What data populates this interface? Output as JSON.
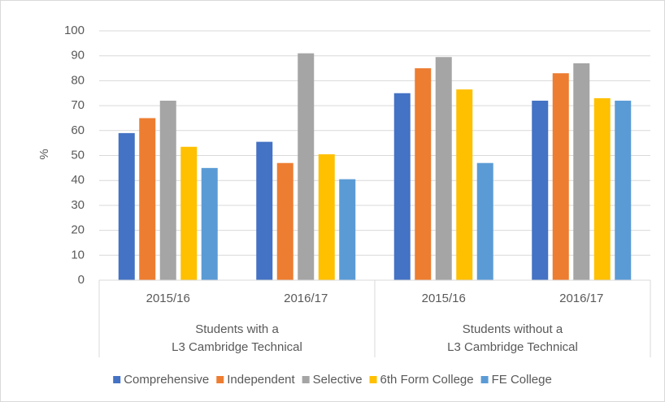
{
  "chart_data": {
    "type": "bar",
    "ylabel": "%",
    "categories": [
      "2015/16",
      "2016/17",
      "2015/16",
      "2016/17"
    ],
    "groups": [
      [
        "Students with a",
        "L3 Cambridge Technical"
      ],
      [
        "Students without a",
        "L3 Cambridge Technical"
      ]
    ],
    "series": [
      {
        "name": "Comprehensive",
        "color": "#4472c4",
        "values": [
          59,
          55.5,
          75,
          72
        ]
      },
      {
        "name": "Independent",
        "color": "#ed7d31",
        "values": [
          65,
          47,
          85,
          83
        ]
      },
      {
        "name": "Selective",
        "color": "#a5a5a5",
        "values": [
          72,
          91,
          89.5,
          87
        ]
      },
      {
        "name": "6th Form College",
        "color": "#ffc000",
        "values": [
          53.5,
          50.5,
          76.5,
          73
        ]
      },
      {
        "name": "FE College",
        "color": "#5b9bd5",
        "values": [
          45,
          40.5,
          47,
          72
        ]
      }
    ],
    "ylim": [
      0,
      100
    ],
    "yticks": [
      0,
      10,
      20,
      30,
      40,
      50,
      60,
      70,
      80,
      90,
      100
    ],
    "grid": true,
    "legend": "bottom"
  }
}
